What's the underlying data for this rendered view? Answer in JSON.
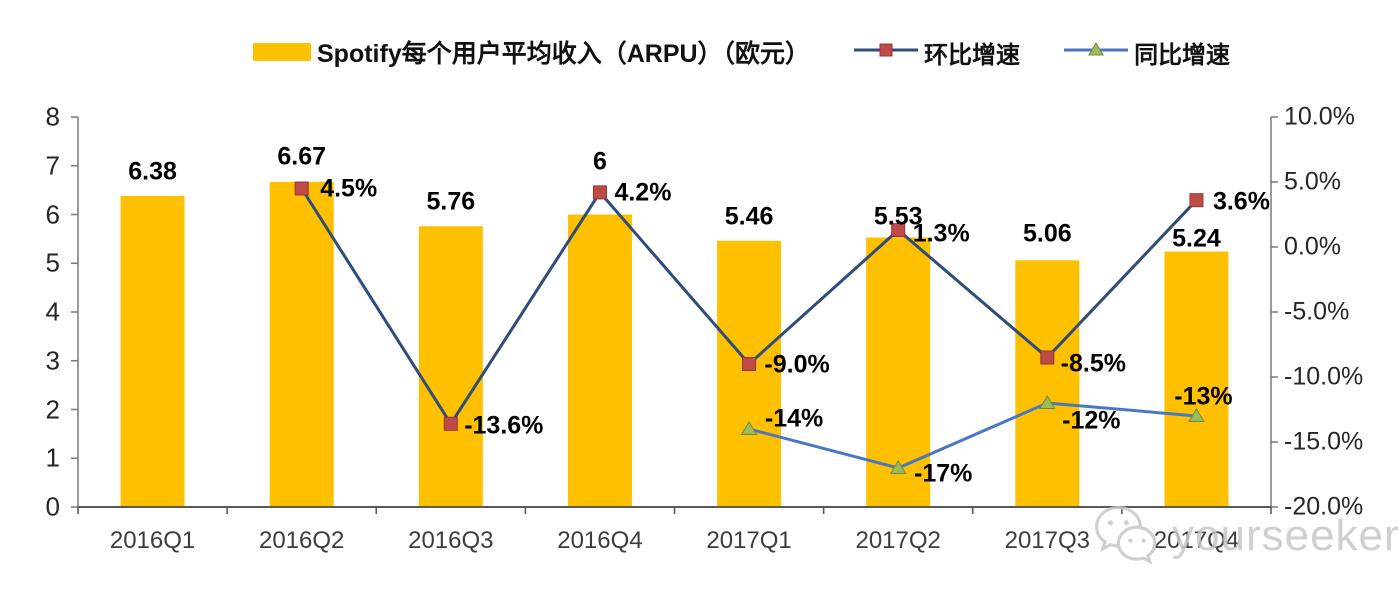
{
  "legend": {
    "bar_label": "Spotify每个用户平均收入（ARPU）（欧元）",
    "qoq_label": "环比增速",
    "yoy_label": "同比增速"
  },
  "watermark": {
    "text": "yourseeker",
    "icon": "wechat-icon"
  },
  "colors": {
    "bar": "#FFC000",
    "qoq_line": "#2E4D7B",
    "qoq_marker": "#BE4B48",
    "qoq_marker_edge": "#943634",
    "yoy_line": "#4A77C4",
    "yoy_marker": "#9CBB59",
    "yoy_marker_edge": "#71893F",
    "axis": "#808080",
    "bottom_axis": "#595959",
    "watermark": "#c7c7c7"
  },
  "chart_data": {
    "type": "composite",
    "categories": [
      "2016Q1",
      "2016Q2",
      "2016Q3",
      "2016Q4",
      "2017Q1",
      "2017Q2",
      "2017Q3",
      "2017Q4"
    ],
    "left_axis": {
      "min": 0,
      "max": 8,
      "tick_values": [
        8,
        7,
        6,
        5,
        4,
        3,
        2,
        1,
        0
      ],
      "tick_labels": [
        "8",
        "7",
        "6",
        "5",
        "4",
        "3",
        "2",
        "1",
        "0"
      ]
    },
    "right_axis": {
      "min": -20,
      "max": 10,
      "tick_values": [
        10,
        5,
        0,
        -5,
        -10,
        -15,
        -20
      ],
      "tick_labels": [
        "10.0%",
        "5.0%",
        "0.0%",
        "-5.0%",
        "-10.0%",
        "-15.0%",
        "-20.0%"
      ]
    },
    "legend_position": "top",
    "grid": false,
    "series": [
      {
        "name": "Spotify每个用户平均收入（ARPU）（欧元）",
        "type": "bar",
        "axis": "left",
        "values": [
          6.38,
          6.67,
          5.76,
          6,
          5.46,
          5.53,
          5.06,
          5.24
        ],
        "labels": [
          "6.38",
          "6.67",
          "5.76",
          "6",
          "5.46",
          "5.53",
          "5.06",
          "5.24"
        ],
        "label_dy": [
          -24,
          -25,
          -24,
          -53,
          -24,
          -20,
          -26,
          -13
        ]
      },
      {
        "name": "环比增速",
        "type": "line",
        "axis": "right",
        "marker": "square",
        "start_index": 1,
        "values": [
          4.5,
          -13.6,
          4.2,
          -9.0,
          1.3,
          -8.5,
          3.6
        ],
        "labels": [
          "4.5%",
          "-13.6%",
          "4.2%",
          "-9.0%",
          "1.3%",
          "-8.5%",
          "3.6%"
        ],
        "label_offsets": [
          [
            47,
            0
          ],
          [
            53,
            2
          ],
          [
            43,
            1
          ],
          [
            48,
            1
          ],
          [
            43,
            4
          ],
          [
            46,
            6
          ],
          [
            45,
            2
          ]
        ]
      },
      {
        "name": "同比增速",
        "type": "line",
        "axis": "right",
        "marker": "triangle",
        "start_index": 4,
        "values": [
          -14,
          -17,
          -12,
          -13
        ],
        "labels": [
          "-14%",
          "-17%",
          "-12%",
          "-13%"
        ],
        "label_offsets": [
          [
            45,
            -10
          ],
          [
            45,
            6
          ],
          [
            44,
            18
          ],
          [
            7,
            -19
          ]
        ]
      }
    ]
  }
}
